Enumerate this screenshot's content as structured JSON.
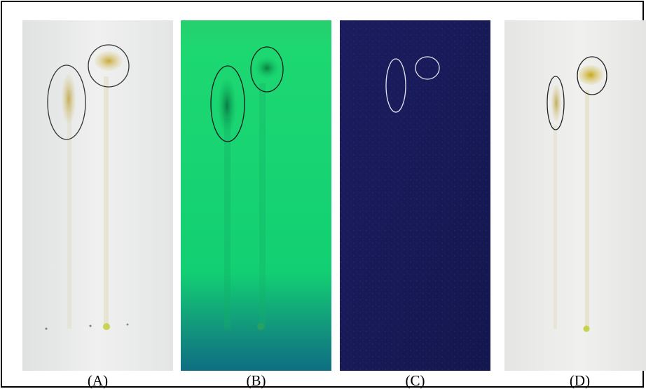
{
  "figure": {
    "panels": [
      {
        "label": "(A)",
        "plate": "white-light",
        "background": "#eceeed",
        "spot_color": "#c9b45a",
        "mark_stroke": "#333333"
      },
      {
        "label": "(B)",
        "plate": "uv-254",
        "background": "#15d96a",
        "spot_color": "#0b7d45",
        "mark_stroke": "#1a1a1a"
      },
      {
        "label": "(C)",
        "plate": "uv-365",
        "background": "#181a5a",
        "spot_color": "#2a2c78",
        "mark_stroke": "#e6e6f0"
      },
      {
        "label": "(D)",
        "plate": "white-light",
        "background": "#ecedea",
        "spot_color": "#c8ae24",
        "mark_stroke": "#222222"
      }
    ]
  }
}
